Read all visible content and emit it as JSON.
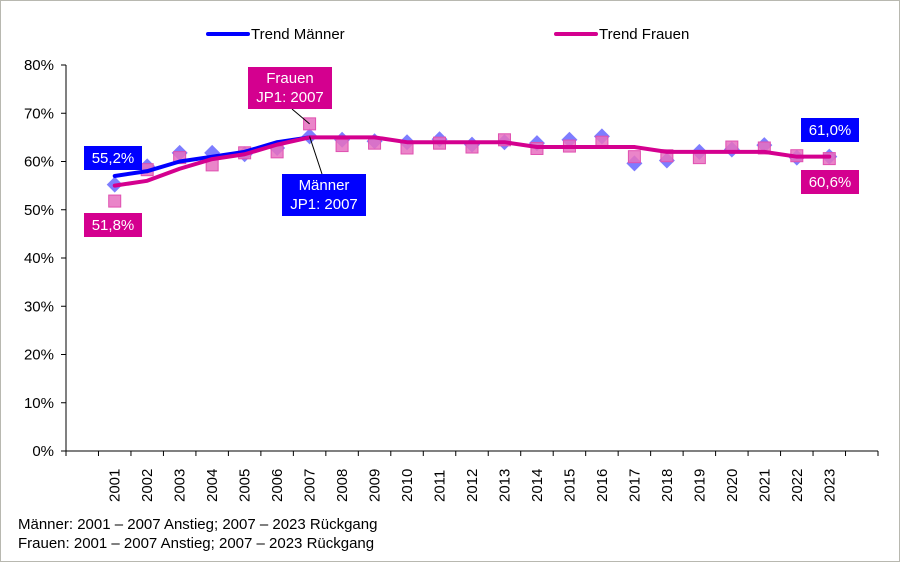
{
  "chart_data": {
    "type": "line",
    "title": "",
    "xlabel": "",
    "ylabel": "",
    "ylim": [
      0,
      80
    ],
    "yticks": [
      0,
      10,
      20,
      30,
      40,
      50,
      60,
      70,
      80
    ],
    "ytick_labels": [
      "0%",
      "10%",
      "20%",
      "30%",
      "40%",
      "50%",
      "60%",
      "70%",
      "80%"
    ],
    "grid": false,
    "legend_position": "top",
    "categories": [
      "2001",
      "2002",
      "2003",
      "2004",
      "2005",
      "2006",
      "2007",
      "2008",
      "2009",
      "2010",
      "2011",
      "2012",
      "2013",
      "2014",
      "2015",
      "2016",
      "2017",
      "2018",
      "2019",
      "2020",
      "2021",
      "2022",
      "2023"
    ],
    "series": [
      {
        "name": "Männer",
        "kind": "scatter",
        "marker": "diamond",
        "color": "#6666ff",
        "values": [
          55.2,
          59.0,
          61.8,
          61.8,
          61.5,
          62.8,
          65.2,
          64.5,
          64.2,
          64.0,
          64.6,
          63.5,
          64.0,
          63.8,
          64.5,
          65.2,
          59.6,
          60.2,
          62.0,
          62.5,
          63.4,
          60.8,
          61.0
        ]
      },
      {
        "name": "Frauen",
        "kind": "scatter",
        "marker": "square",
        "color": "#e670c0",
        "values": [
          51.8,
          58.3,
          60.8,
          59.3,
          61.8,
          62.0,
          67.8,
          63.3,
          63.8,
          62.8,
          63.8,
          63.0,
          64.5,
          62.7,
          63.2,
          64.0,
          61.0,
          61.2,
          60.8,
          63.0,
          62.8,
          61.2,
          60.6
        ]
      },
      {
        "name": "Trend Männer",
        "kind": "line",
        "color": "#0000ff",
        "values": [
          57,
          58,
          60,
          61,
          62,
          64,
          65,
          null,
          null,
          null,
          null,
          null,
          null,
          null,
          null,
          null,
          null,
          null,
          null,
          null,
          null,
          null,
          null
        ]
      },
      {
        "name": "Trend Frauen",
        "kind": "line",
        "color": "#d4008f",
        "values": [
          55,
          56,
          58.5,
          60.5,
          61.5,
          63.5,
          65,
          65,
          65,
          64,
          64,
          64,
          64,
          63,
          63,
          63,
          63,
          62,
          62,
          62,
          62,
          61,
          61
        ]
      }
    ],
    "legend": [
      {
        "label": "Trend Männer",
        "color": "#0000ff"
      },
      {
        "label": "Trend Frauen",
        "color": "#d4008f"
      }
    ],
    "annotations": [
      {
        "id": "m-2001",
        "text": [
          "55,2%"
        ],
        "color": "#0000ff",
        "category": "2001",
        "value": 55.2
      },
      {
        "id": "f-2001",
        "text": [
          "51,8%"
        ],
        "color": "#d4008f",
        "category": "2001",
        "value": 51.8
      },
      {
        "id": "f-jp1",
        "text": [
          "Frauen",
          "JP1: 2007"
        ],
        "color": "#d4008f",
        "category": "2007",
        "value": 67.8
      },
      {
        "id": "m-jp1",
        "text": [
          "Männer",
          "JP1: 2007"
        ],
        "color": "#0000ff",
        "category": "2007",
        "value": 65.2
      },
      {
        "id": "m-2023",
        "text": [
          "61,0%"
        ],
        "color": "#0000ff",
        "category": "2023",
        "value": 61.0
      },
      {
        "id": "f-2023",
        "text": [
          "60,6%"
        ],
        "color": "#d4008f",
        "category": "2023",
        "value": 60.6
      }
    ]
  },
  "footnotes": [
    "Männer: 2001 – 2007 Anstieg; 2007 – 2023 Rückgang",
    "Frauen: 2001 – 2007 Anstieg; 2007 – 2023 Rückgang"
  ]
}
